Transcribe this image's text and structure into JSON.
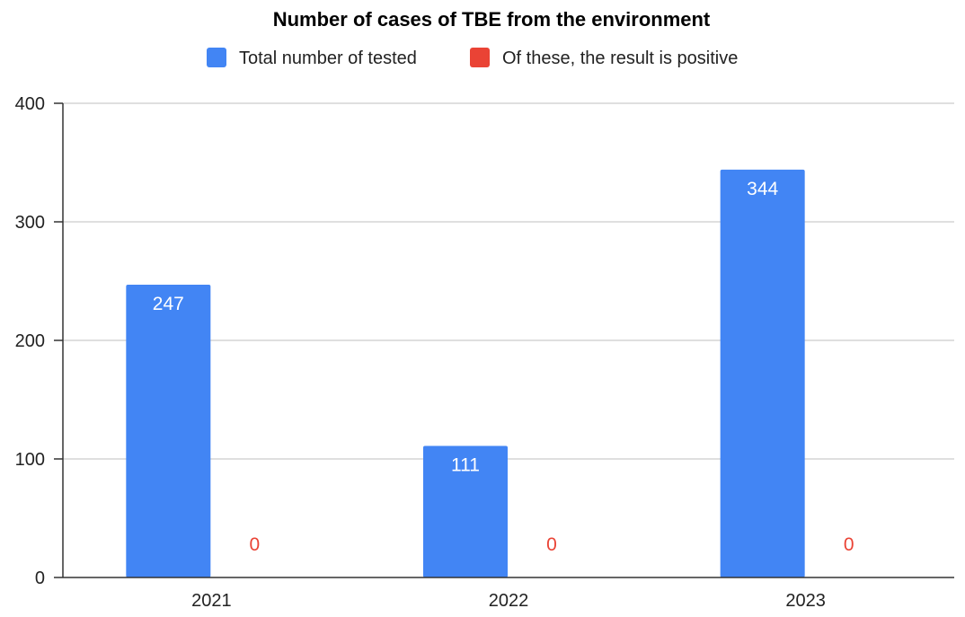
{
  "chart_data": {
    "type": "bar",
    "title": "Number of cases of TBE from the environment",
    "categories": [
      "2021",
      "2022",
      "2023"
    ],
    "series": [
      {
        "name": "Total number of tested",
        "color": "#4285f4",
        "values": [
          247,
          111,
          344
        ]
      },
      {
        "name": "Of these, the result is positive",
        "color": "#ea4335",
        "values": [
          0,
          0,
          0
        ]
      }
    ],
    "ylim": [
      0,
      400
    ],
    "yticks": [
      0,
      100,
      200,
      300,
      400
    ],
    "grid": true,
    "legend": "top-center",
    "data_labels": true
  }
}
